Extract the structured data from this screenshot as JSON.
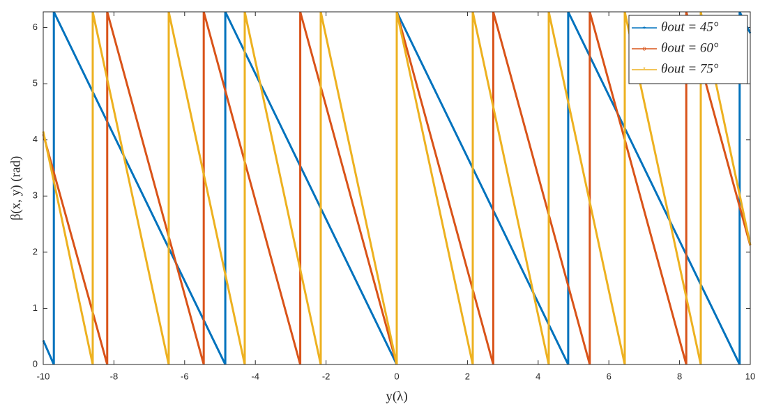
{
  "chart_data": {
    "type": "line",
    "xlabel": "y(λ)",
    "ylabel": "β(x, y) (rad)",
    "xlim": [
      -10,
      10
    ],
    "ylim": [
      0,
      6.28
    ],
    "xticks": [
      -10,
      -8,
      -6,
      -4,
      -2,
      0,
      2,
      4,
      6,
      8,
      10
    ],
    "yticks": [
      0,
      1,
      2,
      3,
      4,
      5,
      6
    ],
    "legend": "top-right",
    "series": [
      {
        "name": "θout = 45°",
        "color": "#0072BD",
        "x": [
          -10,
          -9.7,
          -9.7,
          -4.85,
          -4.85,
          0,
          0,
          4.85,
          4.85,
          9.7,
          9.7,
          10
        ],
        "values": [
          0.43,
          0,
          6.28,
          0,
          6.28,
          0,
          6.28,
          0,
          6.28,
          0,
          6.28,
          5.9
        ]
      },
      {
        "name": "θout = 60°",
        "color": "#D95319",
        "x": [
          -10,
          -8.19,
          -8.19,
          -5.46,
          -5.46,
          -2.73,
          -2.73,
          0,
          0,
          2.73,
          2.73,
          5.46,
          5.46,
          8.19,
          8.19,
          10
        ],
        "values": [
          4.1,
          0,
          6.28,
          0,
          6.28,
          0,
          6.28,
          0,
          6.28,
          0,
          6.28,
          0,
          6.28,
          0,
          6.28,
          2.12
        ]
      },
      {
        "name": "θout = 75°",
        "color": "#EDB120",
        "x": [
          -10,
          -8.6,
          -8.6,
          -6.45,
          -6.45,
          -4.3,
          -4.3,
          -2.15,
          -2.15,
          0,
          0,
          2.15,
          2.15,
          4.3,
          4.3,
          6.45,
          6.45,
          8.6,
          8.6,
          10
        ],
        "values": [
          4.15,
          0,
          6.28,
          0,
          6.28,
          0,
          6.28,
          0,
          6.28,
          0,
          6.28,
          0,
          6.28,
          0,
          6.28,
          0,
          6.28,
          0,
          6.28,
          2.13
        ]
      }
    ]
  }
}
